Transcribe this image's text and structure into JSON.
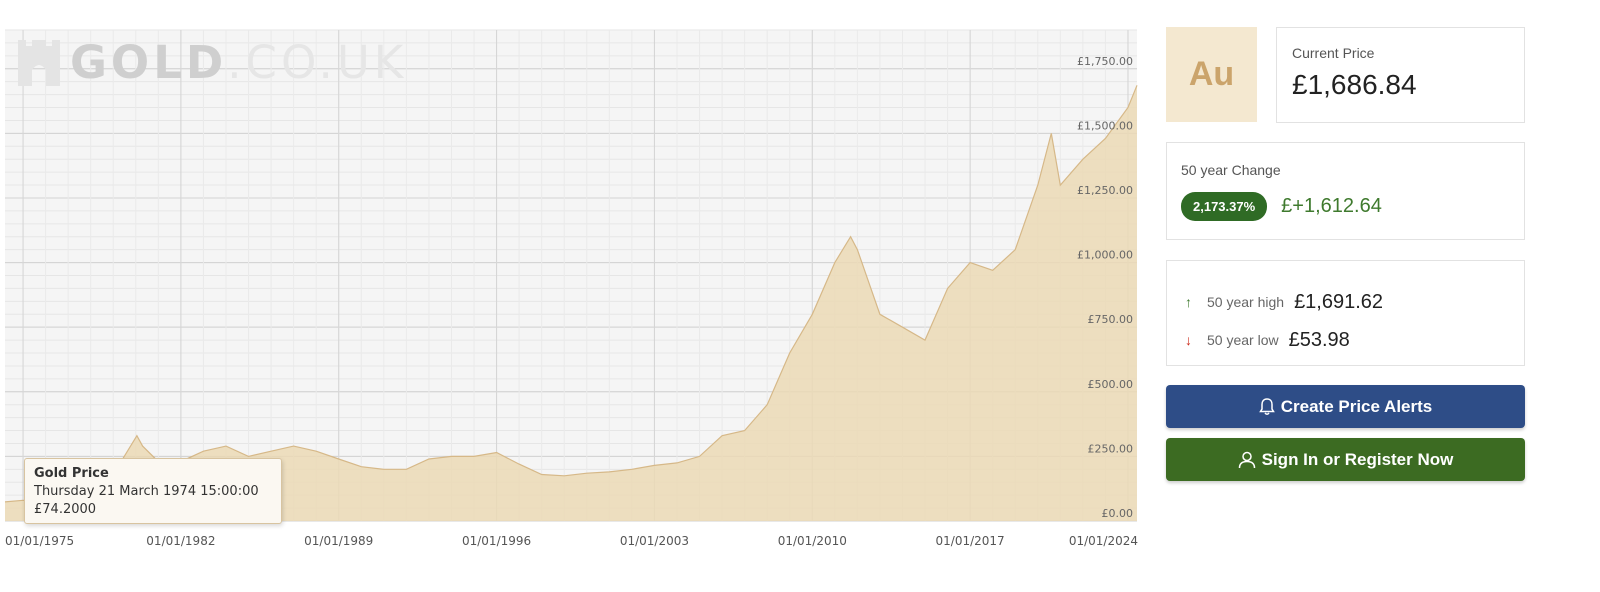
{
  "brand": {
    "logo_main": "GOLD",
    "logo_suffix": ".CO.UK"
  },
  "tooltip": {
    "title": "Gold Price",
    "date": "Thursday 21 March 1974 15:00:00",
    "value": "£74.2000"
  },
  "chart_data": {
    "type": "area",
    "series": [
      {
        "name": "Gold Price",
        "x": [
          1974.2,
          1975,
          1976,
          1977,
          1978,
          1979,
          1980.05,
          1980.3,
          1981,
          1982,
          1983,
          1984,
          1985,
          1986,
          1987,
          1988,
          1989,
          1990,
          1991,
          1992,
          1993,
          1994,
          1995,
          1996,
          1997,
          1998,
          1999,
          2000,
          2001,
          2002,
          2003,
          2004,
          2005,
          2006,
          2007,
          2008,
          2009,
          2010,
          2011,
          2011.7,
          2012,
          2013,
          2014,
          2015,
          2016,
          2017,
          2018,
          2019,
          2020,
          2020.6,
          2021,
          2022,
          2023,
          2024,
          2024.4
        ],
        "values": [
          74,
          80,
          75,
          90,
          100,
          180,
          330,
          290,
          230,
          230,
          270,
          290,
          250,
          270,
          290,
          270,
          240,
          210,
          200,
          200,
          240,
          250,
          250,
          265,
          220,
          180,
          175,
          185,
          190,
          200,
          215,
          225,
          250,
          330,
          350,
          450,
          650,
          800,
          1000,
          1100,
          1050,
          800,
          750,
          700,
          900,
          1000,
          970,
          1050,
          1300,
          1500,
          1300,
          1400,
          1480,
          1600,
          1686
        ]
      }
    ],
    "xlim": [
      1974.2,
      2024.4
    ],
    "ylim": [
      0,
      1900
    ],
    "x_ticks": [
      "01/01/1975",
      "01/01/1982",
      "01/01/1989",
      "01/01/1996",
      "01/01/2003",
      "01/01/2010",
      "01/01/2017",
      "01/01/2024"
    ],
    "x_tick_values": [
      1975,
      1982,
      1989,
      1996,
      2003,
      2010,
      2017,
      2024
    ],
    "y_ticks": [
      "£0.00",
      "£250.00",
      "£500.00",
      "£750.00",
      "£1,000.00",
      "£1,250.00",
      "£1,500.00",
      "£1,750.00"
    ],
    "y_tick_values": [
      0,
      250,
      500,
      750,
      1000,
      1250,
      1500,
      1750
    ],
    "grid": true,
    "fill_color": "#ebd9b5",
    "line_color": "#d6b888"
  },
  "current_price": {
    "symbol": "Au",
    "label": "Current Price",
    "value": "£1,686.84"
  },
  "change": {
    "label": "50 year Change",
    "percent": "2,173.37%",
    "amount": "£+1,612.64"
  },
  "high_low": {
    "high_label": "50 year high",
    "high_value": "£1,691.62",
    "low_label": "50 year low",
    "low_value": "£53.98",
    "high_icon": "arrow-up-icon",
    "low_icon": "arrow-down-icon"
  },
  "buttons": {
    "alerts_label": "Create Price Alerts",
    "alerts_icon": "bell-icon",
    "signin_label": "Sign In or Register Now",
    "signin_icon": "user-icon"
  },
  "colors": {
    "accent_gold": "#cba46b",
    "positive": "#2f6b25",
    "negative": "#cc2a1b",
    "alerts_button": "#2e4d87",
    "signin_button": "#3c6b22"
  }
}
